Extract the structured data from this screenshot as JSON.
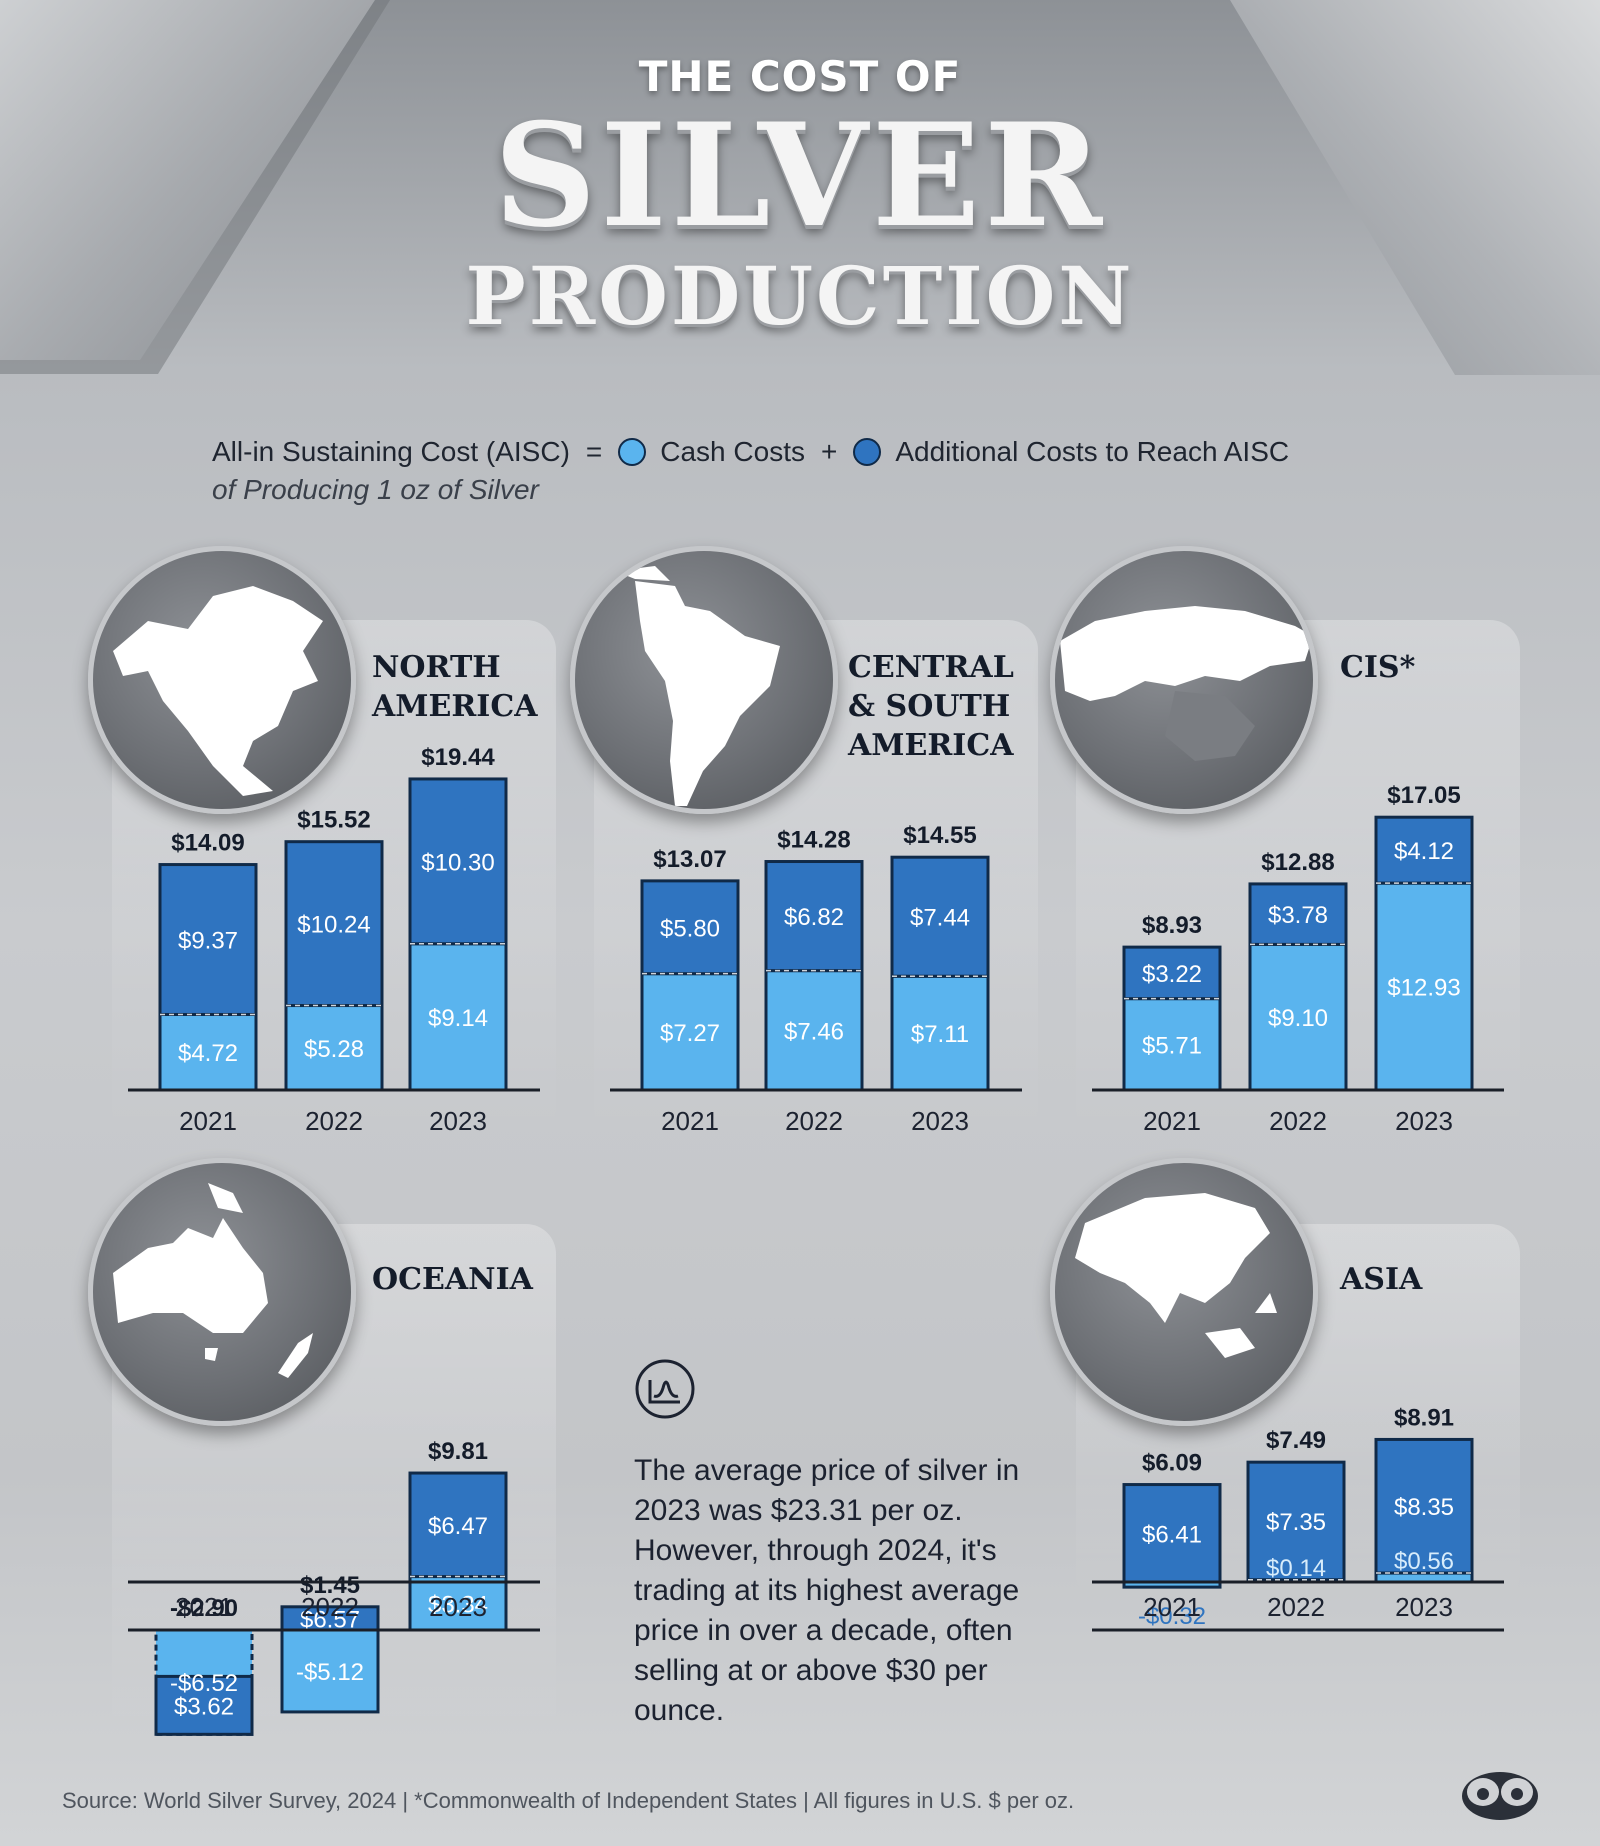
{
  "title": {
    "line1": "THE COST OF",
    "line2": "SILVER",
    "line3": "PRODUCTION"
  },
  "legend": {
    "aisc_label": "All-in Sustaining Cost (AISC)",
    "equals": "=",
    "cash_label": "Cash Costs",
    "plus": "+",
    "additional_label": "Additional Costs to Reach AISC",
    "subtitle": "of Producing 1 oz of Silver"
  },
  "colors": {
    "cash": "#5ab4ee",
    "additional": "#2f74c0",
    "outline": "#102a48",
    "negative_text": "#2f74c0"
  },
  "note": {
    "icon": "chart-wave-icon",
    "text": "The average price of silver in 2023 was $23.31 per oz. However, through 2024, it's trading at its highest average price in over a decade, often selling at or above $30 per ounce."
  },
  "source": "Source: World Silver Survey, 2024 | *Commonwealth of Independent States | All figures in U.S. $ per oz.",
  "chart_data": [
    {
      "type": "bar",
      "region": "NORTH\nAMERICA",
      "categories": [
        "2021",
        "2022",
        "2023"
      ],
      "series": [
        {
          "name": "Cash Costs",
          "values": [
            4.72,
            5.28,
            9.14
          ],
          "labels": [
            "$4.72",
            "$5.28",
            "$9.14"
          ]
        },
        {
          "name": "Additional Costs to Reach AISC",
          "values": [
            9.37,
            10.24,
            10.3
          ],
          "labels": [
            "$9.37",
            "$10.24",
            "$10.30"
          ]
        }
      ],
      "totals": [
        14.09,
        15.52,
        19.44
      ],
      "total_labels": [
        "$14.09",
        "$15.52",
        "$19.44"
      ]
    },
    {
      "type": "bar",
      "region": "CENTRAL\n& SOUTH\nAMERICA",
      "categories": [
        "2021",
        "2022",
        "2023"
      ],
      "series": [
        {
          "name": "Cash Costs",
          "values": [
            7.27,
            7.46,
            7.11
          ],
          "labels": [
            "$7.27",
            "$7.46",
            "$7.11"
          ]
        },
        {
          "name": "Additional Costs to Reach AISC",
          "values": [
            5.8,
            6.82,
            7.44
          ],
          "labels": [
            "$5.80",
            "$6.82",
            "$7.44"
          ]
        }
      ],
      "totals": [
        13.07,
        14.28,
        14.55
      ],
      "total_labels": [
        "$13.07",
        "$14.28",
        "$14.55"
      ]
    },
    {
      "type": "bar",
      "region": "CIS*",
      "categories": [
        "2021",
        "2022",
        "2023"
      ],
      "series": [
        {
          "name": "Cash Costs",
          "values": [
            5.71,
            9.1,
            12.93
          ],
          "labels": [
            "$5.71",
            "$9.10",
            "$12.93"
          ]
        },
        {
          "name": "Additional Costs to Reach AISC",
          "values": [
            3.22,
            3.78,
            4.12
          ],
          "labels": [
            "$3.22",
            "$3.78",
            "$4.12"
          ]
        }
      ],
      "totals": [
        8.93,
        12.88,
        17.05
      ],
      "total_labels": [
        "$8.93",
        "$12.88",
        "$17.05"
      ]
    },
    {
      "type": "bar",
      "region": "OCEANIA",
      "categories": [
        "2021",
        "2022",
        "2023"
      ],
      "series": [
        {
          "name": "Cash Costs",
          "values": [
            -6.52,
            -5.12,
            3.34
          ],
          "labels": [
            "-$6.52",
            "-$5.12",
            "$3.34"
          ]
        },
        {
          "name": "Additional Costs to Reach AISC",
          "values": [
            3.62,
            6.57,
            6.47
          ],
          "labels": [
            "$3.62",
            "$6.57",
            "$6.47"
          ]
        }
      ],
      "totals": [
        -2.9,
        1.45,
        9.81
      ],
      "total_labels": [
        "-$2.90",
        "$1.45",
        "$9.81"
      ]
    },
    {
      "type": "bar",
      "region": "ASIA",
      "categories": [
        "2021",
        "2022",
        "2023"
      ],
      "series": [
        {
          "name": "Cash Costs",
          "values": [
            -0.32,
            0.14,
            0.56
          ],
          "labels": [
            "-$0.32",
            "$0.14",
            "$0.56"
          ]
        },
        {
          "name": "Additional Costs to Reach AISC",
          "values": [
            6.41,
            7.35,
            8.35
          ],
          "labels": [
            "$6.41",
            "$7.35",
            "$8.35"
          ]
        }
      ],
      "totals": [
        6.09,
        7.49,
        8.91
      ],
      "total_labels": [
        "$6.09",
        "$7.49",
        "$8.91"
      ]
    }
  ]
}
